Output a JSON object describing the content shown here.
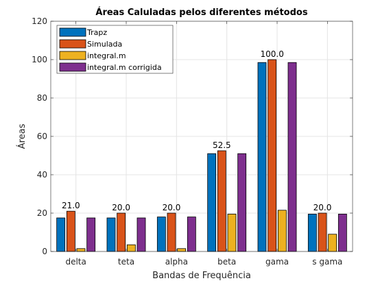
{
  "chart_data": {
    "type": "bar",
    "title": "Áreas Caluladas pelos diferentes métodos",
    "xlabel": "Bandas de Frequência",
    "ylabel": "Áreas",
    "categories": [
      "delta",
      "teta",
      "alpha",
      "beta",
      "gama",
      "s gama"
    ],
    "ylim": [
      0,
      120
    ],
    "yticks": [
      0,
      20,
      40,
      60,
      80,
      100,
      120
    ],
    "grid": true,
    "legend_position": "top-left",
    "series": [
      {
        "name": "Trapz",
        "color": "#0072BD",
        "values": [
          17.5,
          17.5,
          18,
          51,
          98.5,
          19.5
        ]
      },
      {
        "name": "Simulada",
        "color": "#D95319",
        "values": [
          21.0,
          20.0,
          20.0,
          52.5,
          100.0,
          20.0
        ]
      },
      {
        "name": "integral.m",
        "color": "#EDB120",
        "values": [
          1.5,
          3.5,
          1.5,
          19.5,
          21.5,
          9
        ]
      },
      {
        "name": "integral.m corrigida",
        "color": "#7E2F8E",
        "values": [
          17.5,
          17.5,
          18,
          51,
          98.5,
          19.5
        ]
      }
    ],
    "annotations": [
      {
        "category": "delta",
        "text": "21.0",
        "value": 21.0
      },
      {
        "category": "teta",
        "text": "20.0",
        "value": 20.0
      },
      {
        "category": "alpha",
        "text": "20.0",
        "value": 20.0
      },
      {
        "category": "beta",
        "text": "52.5",
        "value": 52.5
      },
      {
        "category": "gama",
        "text": "100.0",
        "value": 100.0
      },
      {
        "category": "s gama",
        "text": "20.0",
        "value": 20.0
      }
    ]
  }
}
